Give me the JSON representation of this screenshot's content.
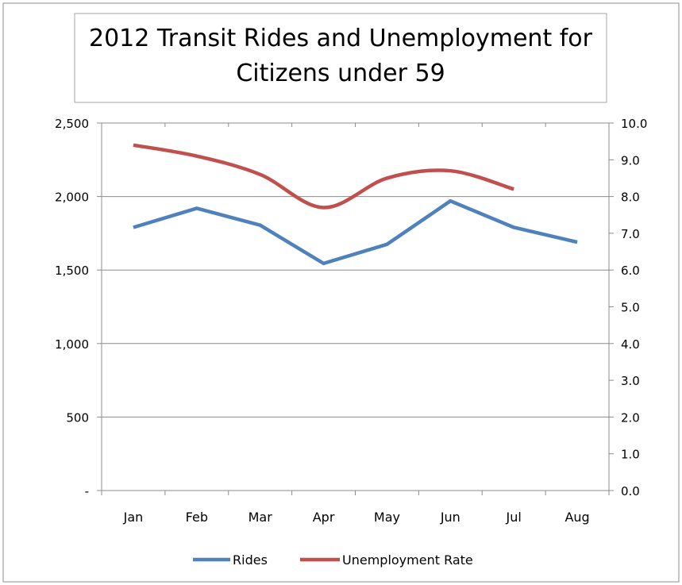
{
  "chart_data": {
    "type": "line",
    "title_lines": [
      "2012 Transit Rides and Unemployment for",
      "Citizens under 59"
    ],
    "categories": [
      "Jan",
      "Feb",
      "Mar",
      "Apr",
      "May",
      "Jun",
      "Jul",
      "Aug"
    ],
    "y_left": {
      "ylim": [
        0,
        2500
      ],
      "ticks": [
        0,
        500,
        1000,
        1500,
        2000,
        2500
      ],
      "tick_labels": [
        "-",
        "500",
        "1,000",
        "1,500",
        "2,000",
        "2,500"
      ]
    },
    "y_right": {
      "ylim": [
        0,
        10
      ],
      "ticks": [
        0,
        1,
        2,
        3,
        4,
        5,
        6,
        7,
        8,
        9,
        10
      ],
      "tick_labels": [
        "0.0",
        "1.0",
        "2.0",
        "3.0",
        "4.0",
        "5.0",
        "6.0",
        "7.0",
        "8.0",
        "9.0",
        "10.0"
      ]
    },
    "grid": true,
    "legend_position": "bottom",
    "series": [
      {
        "name": "Rides",
        "axis": "left",
        "color": "#4F81BD",
        "values": [
          1790,
          1920,
          1805,
          1545,
          1675,
          1970,
          1790,
          1690
        ]
      },
      {
        "name": "Unemployment Rate",
        "axis": "right",
        "color": "#C0504D",
        "values": [
          9.4,
          9.1,
          8.6,
          7.7,
          8.5,
          8.7,
          8.2,
          null
        ]
      }
    ]
  }
}
